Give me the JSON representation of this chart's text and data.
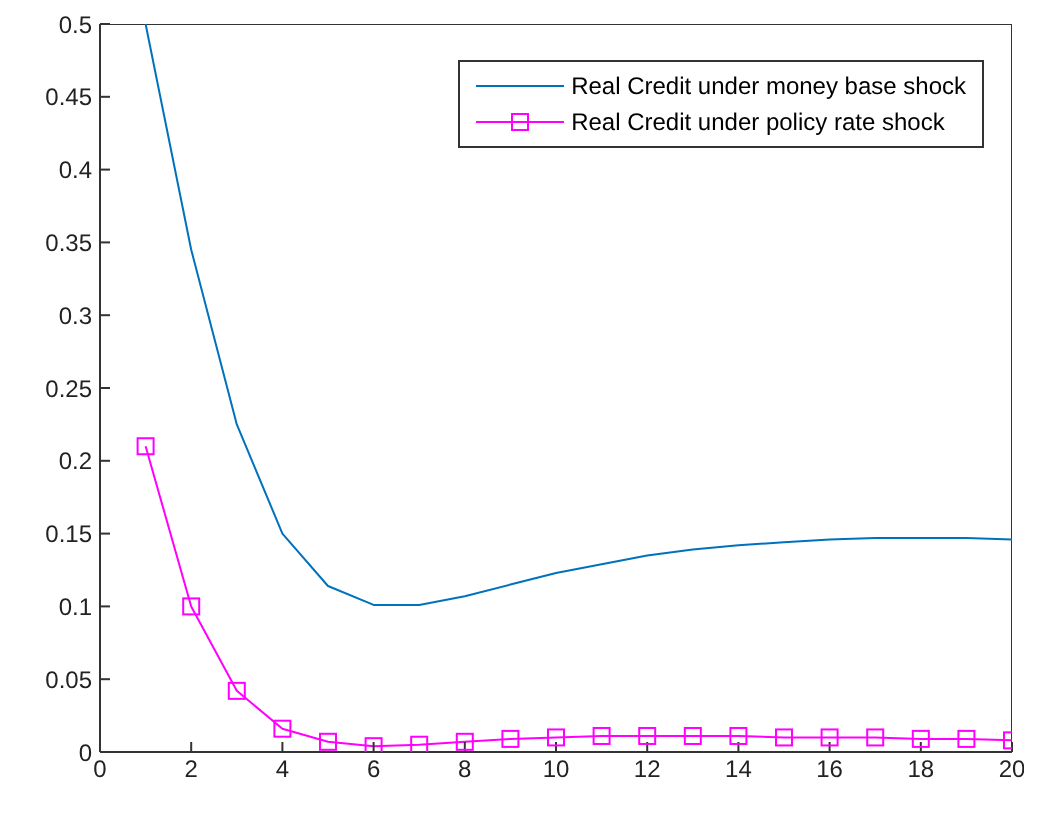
{
  "chart_data": {
    "type": "line",
    "x": [
      1,
      2,
      3,
      4,
      5,
      6,
      7,
      8,
      9,
      10,
      11,
      12,
      13,
      14,
      15,
      16,
      17,
      18,
      19,
      20
    ],
    "series": [
      {
        "name": "Real Credit under money base shock",
        "color": "#0072bd",
        "marker": "none",
        "values": [
          0.5,
          0.345,
          0.225,
          0.15,
          0.114,
          0.101,
          0.101,
          0.107,
          0.115,
          0.123,
          0.129,
          0.135,
          0.139,
          0.142,
          0.144,
          0.146,
          0.147,
          0.147,
          0.147,
          0.146
        ]
      },
      {
        "name": "Real Credit under policy rate shock",
        "color": "#ff00ff",
        "marker": "square",
        "values": [
          0.21,
          0.1,
          0.042,
          0.016,
          0.007,
          0.004,
          0.005,
          0.007,
          0.009,
          0.01,
          0.011,
          0.011,
          0.011,
          0.011,
          0.01,
          0.01,
          0.01,
          0.009,
          0.009,
          0.008
        ]
      }
    ],
    "xlim": [
      0,
      20
    ],
    "xticks": [
      0,
      2,
      4,
      6,
      8,
      10,
      12,
      14,
      16,
      18,
      20
    ],
    "ylim": [
      0,
      0.5
    ],
    "yticks": [
      0,
      0.05,
      0.1,
      0.15,
      0.2,
      0.25,
      0.3,
      0.35,
      0.4,
      0.45,
      0.5
    ],
    "grid": false,
    "legend": "top right",
    "line_style": "solid"
  }
}
